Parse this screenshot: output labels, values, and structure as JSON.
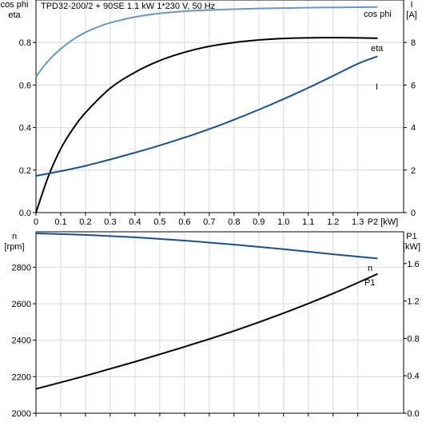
{
  "chart_data": [
    {
      "type": "line",
      "title": "TPD32-200/2 + 90SE   1.1 kW   1*230 V, 50 Hz",
      "xlabel": "P2 [kW]",
      "x_ticks": [
        "0",
        "0.1",
        "0.2",
        "0.3",
        "0.4",
        "0.5",
        "0.6",
        "0.7",
        "0.8",
        "0.9",
        "1.0",
        "1.1",
        "1.2",
        "1.3"
      ],
      "xlim": [
        0,
        1.485
      ],
      "ylabel_left": [
        "cos phi",
        "eta"
      ],
      "ylim_left": [
        0,
        1.0
      ],
      "y_ticks_left": [
        "0.0",
        "0.2",
        "0.4",
        "0.6",
        "0.8"
      ],
      "ylabel_right": [
        "I",
        "[A]"
      ],
      "ylim_right": [
        0,
        10.0
      ],
      "y_ticks_right": [
        "0",
        "2",
        "4",
        "6",
        "8"
      ],
      "grid": true,
      "series": [
        {
          "name": "cos phi",
          "axis": "left",
          "color": "#6c96bf",
          "x": [
            0,
            0.05,
            0.1,
            0.15,
            0.2,
            0.25,
            0.3,
            0.4,
            0.5,
            0.6,
            0.7,
            0.8,
            0.9,
            1.0,
            1.1,
            1.2,
            1.3,
            1.38
          ],
          "y": [
            0.64,
            0.714,
            0.77,
            0.814,
            0.848,
            0.873,
            0.893,
            0.92,
            0.937,
            0.947,
            0.953,
            0.957,
            0.96,
            0.962,
            0.964,
            0.965,
            0.966,
            0.967
          ]
        },
        {
          "name": "eta",
          "axis": "left",
          "color": "#000000",
          "x": [
            0,
            0.05,
            0.1,
            0.15,
            0.2,
            0.3,
            0.4,
            0.5,
            0.6,
            0.7,
            0.8,
            0.9,
            1.0,
            1.1,
            1.2,
            1.3,
            1.38
          ],
          "y": [
            0.0,
            0.17,
            0.3,
            0.395,
            0.47,
            0.585,
            0.66,
            0.715,
            0.754,
            0.782,
            0.8,
            0.812,
            0.819,
            0.822,
            0.823,
            0.822,
            0.82
          ]
        },
        {
          "name": "I",
          "axis": "right",
          "color": "#1c4f8a",
          "x": [
            0,
            0.1,
            0.2,
            0.3,
            0.4,
            0.5,
            0.6,
            0.7,
            0.8,
            0.9,
            1.0,
            1.1,
            1.2,
            1.3,
            1.38
          ],
          "y": [
            1.73,
            1.95,
            2.2,
            2.5,
            2.82,
            3.16,
            3.53,
            3.93,
            4.37,
            4.84,
            5.34,
            5.87,
            6.43,
            7.0,
            7.35
          ]
        }
      ]
    },
    {
      "type": "line",
      "xlim": [
        0,
        1.485
      ],
      "ylabel_left": [
        "n",
        "[rpm]"
      ],
      "ylim_left": [
        2000,
        2994
      ],
      "y_ticks_left": [
        "2000",
        "2200",
        "2400",
        "2600",
        "2800"
      ],
      "ylabel_right": [
        "P1",
        "[kW]"
      ],
      "ylim_right": [
        0.0,
        1.94
      ],
      "y_ticks_right": [
        "0.0",
        "0.4",
        "0.8",
        "1.2",
        "1.6"
      ],
      "grid": true,
      "series": [
        {
          "name": "n",
          "axis": "left",
          "color": "#1c4f8a",
          "x": [
            0,
            0.2,
            0.4,
            0.6,
            0.8,
            1.0,
            1.2,
            1.38
          ],
          "y": [
            2985,
            2977,
            2964,
            2946,
            2924,
            2899,
            2871,
            2848
          ]
        },
        {
          "name": "P1",
          "axis": "right",
          "color": "#000000",
          "x": [
            0,
            0.2,
            0.4,
            0.6,
            0.8,
            1.0,
            1.2,
            1.38
          ],
          "y": [
            0.26,
            0.4,
            0.55,
            0.71,
            0.88,
            1.07,
            1.28,
            1.49
          ]
        }
      ]
    }
  ]
}
